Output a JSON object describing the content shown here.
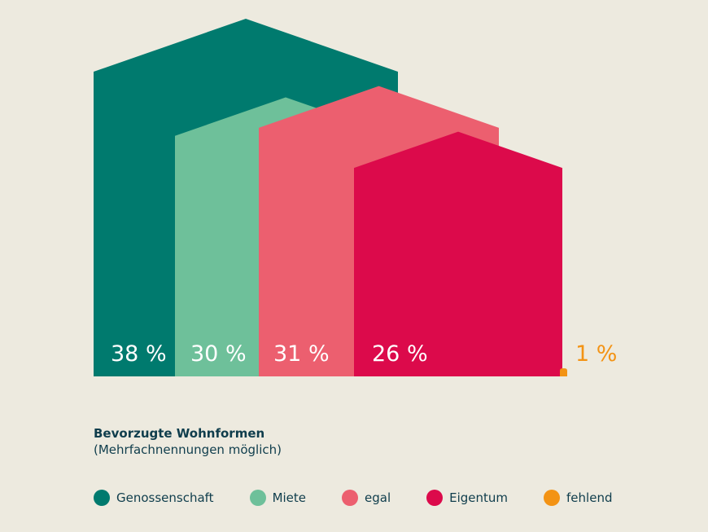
{
  "chart_data": {
    "type": "bar",
    "title": "Bevorzugte Wohnformen",
    "subtitle": "(Mehrfachnennungen möglich)",
    "categories": [
      "Genossenschaft",
      "Miete",
      "egal",
      "Eigentum",
      "fehlend"
    ],
    "values": [
      38,
      30,
      31,
      26,
      1
    ],
    "value_labels": [
      "38 %",
      "30 %",
      "31 %",
      "26 %",
      "1 %"
    ],
    "colors": [
      "#007a6e",
      "#6ec09a",
      "#ec5f6f",
      "#dc0a4b",
      "#f39314"
    ],
    "ylim": [
      0,
      38
    ],
    "legend_position": "bottom",
    "grid": false
  }
}
